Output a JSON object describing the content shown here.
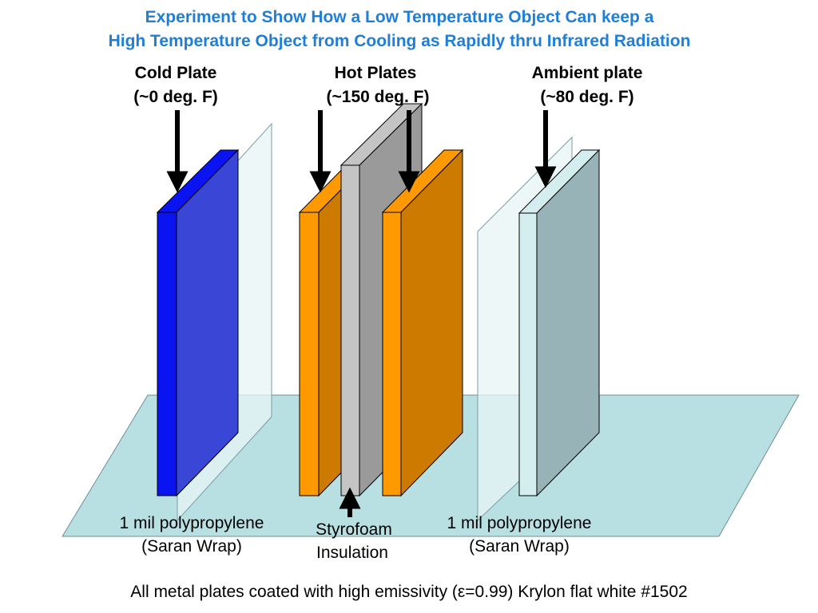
{
  "title": {
    "line1": "Experiment to Show How a Low Temperature Object Can keep a",
    "line2": "High Temperature Object from Cooling as Rapidly thru Infrared Radiation"
  },
  "headings": {
    "cold": {
      "name": "Cold Plate",
      "temp": "(~0 deg. F)"
    },
    "hot": {
      "name": "Hot Plates",
      "temp": "(~150 deg. F)"
    },
    "ambient": {
      "name": "Ambient plate",
      "temp": "(~80 deg. F)"
    }
  },
  "labels": {
    "film_left": {
      "line1": "1 mil polypropylene",
      "line2": "(Saran Wrap)"
    },
    "insulation": {
      "line1": "Styrofoam",
      "line2": "Insulation"
    },
    "film_right": {
      "line1": "1 mil polypropylene",
      "line2": "(Saran Wrap)"
    }
  },
  "footer": "All metal plates coated with high emissivity (ε=0.99) Krylon flat white #1502",
  "colors": {
    "title": "#1f7fd8",
    "base": "#b8dfe2",
    "cold_front": "#3a46d6",
    "cold_edge": "#0a14f0",
    "hot_front": "#cc7a00",
    "hot_edge": "#ff9900",
    "insulation_front": "#9a9a9a",
    "insulation_edge": "#c4c4c4",
    "ambient_front": "#98b3b8",
    "ambient_edge": "#d4eef0",
    "film": "#e8f4f6"
  }
}
